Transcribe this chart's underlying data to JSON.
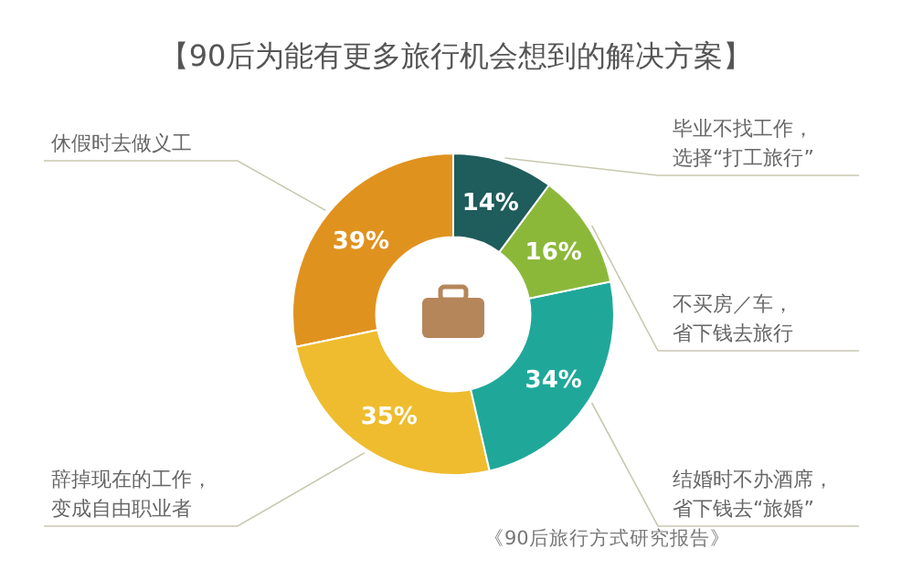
{
  "chart_data": {
    "type": "donut",
    "title": "【90后为能有更多旅行机会想到的解决方案】",
    "categories": [
      "休假时去做义工",
      "辞掉现在的工作，变成自由职业者",
      "结婚时不办酒席，省下钱去“旅婚”",
      "不买房／车，省下钱去旅行",
      "毕业不找工作，选择“打工旅行”"
    ],
    "values": [
      39,
      35,
      34,
      16,
      14
    ],
    "value_labels": [
      "39%",
      "35%",
      "34%",
      "16%",
      "14%"
    ],
    "colors": [
      "#e0921f",
      "#eebc2e",
      "#1fa89a",
      "#8cb83a",
      "#1f5c5c"
    ],
    "annotations": [
      "《90后旅行方式研究报告》"
    ]
  }
}
